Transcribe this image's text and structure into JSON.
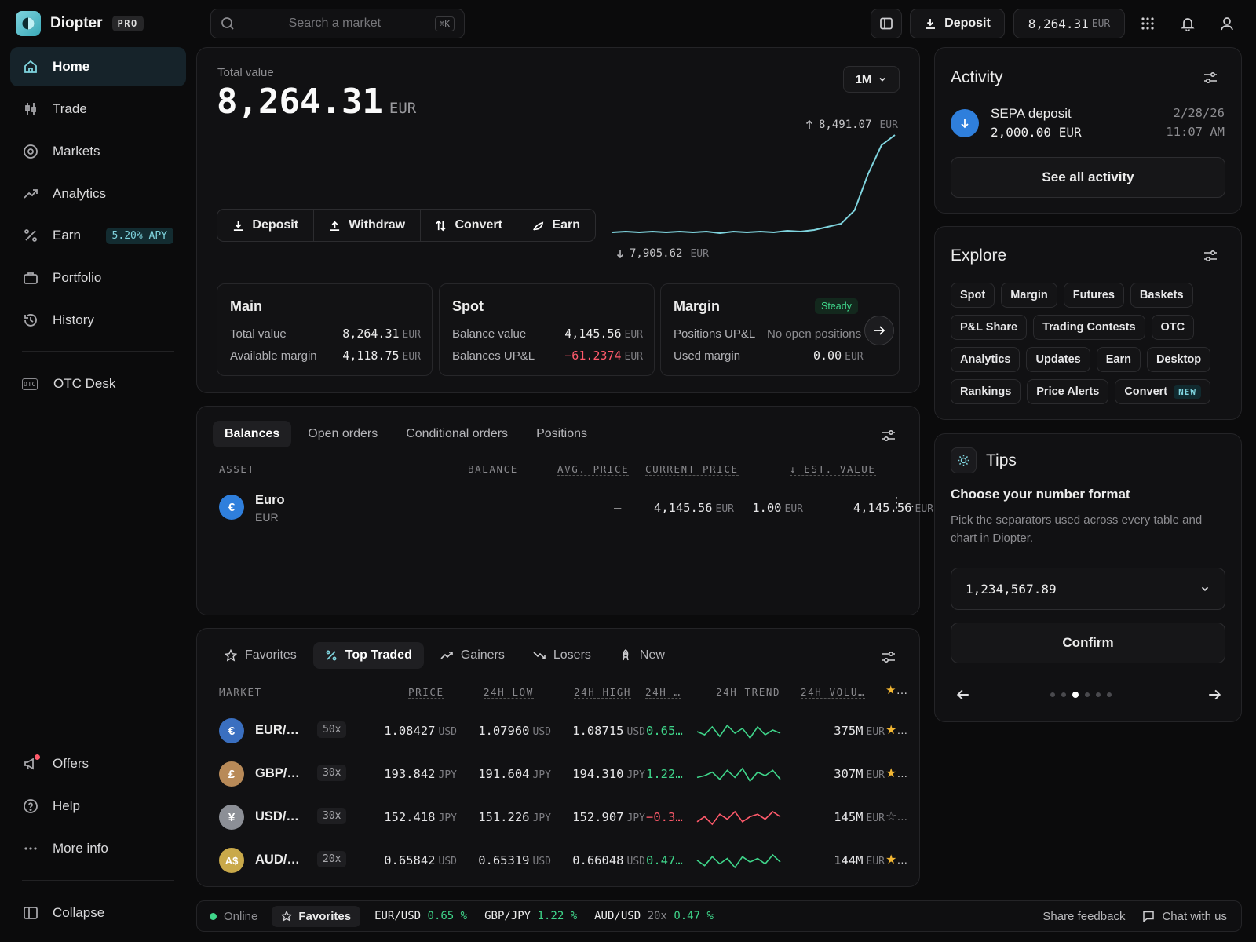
{
  "app": {
    "name": "Diopter",
    "badge": "PRO"
  },
  "sidebar": {
    "items": [
      {
        "label": "Home"
      },
      {
        "label": "Trade"
      },
      {
        "label": "Markets"
      },
      {
        "label": "Analytics"
      },
      {
        "label": "Earn",
        "badge": "5.20% APY"
      },
      {
        "label": "Portfolio"
      },
      {
        "label": "History"
      }
    ],
    "otc": {
      "label": "OTC Desk",
      "icon_text": "OTC"
    },
    "bottom": [
      {
        "label": "Offers"
      },
      {
        "label": "Help"
      },
      {
        "label": "More info"
      }
    ],
    "collapse": "Collapse"
  },
  "topbar": {
    "search_placeholder": "Search a market",
    "search_shortcut": "⌘K",
    "deposit": "Deposit",
    "balance": "8,264.31",
    "balance_currency": "EUR"
  },
  "overview": {
    "label": "Total value",
    "value": "8,264.31",
    "currency": "EUR",
    "range": "1M",
    "chart_high": "8,491.07",
    "chart_low": "7,905.62",
    "chart_currency": "EUR",
    "actions": [
      "Deposit",
      "Withdraw",
      "Convert",
      "Earn"
    ],
    "accounts": [
      {
        "title": "Main",
        "rows": [
          {
            "k": "Total value",
            "v": "8,264.31",
            "c": "EUR"
          },
          {
            "k": "Available margin",
            "v": "4,118.75",
            "c": "EUR"
          }
        ]
      },
      {
        "title": "Spot",
        "rows": [
          {
            "k": "Balance value",
            "v": "4,145.56",
            "c": "EUR"
          },
          {
            "k": "Balances UP&L",
            "v": "−61.2374",
            "c": "EUR"
          }
        ]
      },
      {
        "title": "Margin",
        "badge": "Steady",
        "rows": [
          {
            "k": "Positions UP&L",
            "v": "No open positions",
            "c": ""
          },
          {
            "k": "Used margin",
            "v": "0.00",
            "c": "EUR"
          }
        ]
      }
    ]
  },
  "balances": {
    "tabs": [
      "Balances",
      "Open orders",
      "Conditional orders",
      "Positions"
    ],
    "headers": [
      "ASSET",
      "BALANCE",
      "AVG. PRICE",
      "CURRENT PRICE",
      "EST. VALUE"
    ],
    "rows": [
      {
        "symbol": "€",
        "name": "Euro",
        "code": "EUR",
        "balance": "4,145.56",
        "balance_c": "EUR",
        "avg": "–",
        "price": "1.00",
        "price_c": "EUR",
        "value": "4,145.56",
        "value_c": "EUR"
      }
    ]
  },
  "markets": {
    "tabs": [
      "Favorites",
      "Top Traded",
      "Gainers",
      "Losers",
      "New"
    ],
    "headers": [
      "MARKET",
      "PRICE",
      "24H LOW",
      "24H HIGH",
      "24H …",
      "24H TREND",
      "24H VOLU…"
    ],
    "rows": [
      {
        "symbol": "€",
        "pair": "EUR/…",
        "lev": "50x",
        "price": "1.08427",
        "price_c": "USD",
        "low": "1.07960",
        "low_c": "USD",
        "high": "1.08715",
        "high_c": "USD",
        "chg": "0.65…",
        "vol": "375M",
        "vol_c": "EUR",
        "fav": true,
        "up": true,
        "trend": [
          6,
          4,
          9,
          3,
          10,
          5,
          8,
          2,
          9,
          4,
          7,
          5
        ]
      },
      {
        "symbol": "£",
        "pair": "GBP/…",
        "lev": "30x",
        "price": "193.842",
        "price_c": "JPY",
        "low": "191.604",
        "low_c": "JPY",
        "high": "194.310",
        "high_c": "JPY",
        "chg": "1.22…",
        "vol": "307M",
        "vol_c": "EUR",
        "fav": true,
        "up": true,
        "trend": [
          5,
          6,
          8,
          4,
          9,
          5,
          10,
          3,
          8,
          6,
          9,
          4
        ]
      },
      {
        "symbol": "¥",
        "pair": "USD/…",
        "lev": "30x",
        "price": "152.418",
        "price_c": "JPY",
        "low": "151.226",
        "low_c": "JPY",
        "high": "152.907",
        "high_c": "JPY",
        "chg": "−0.3…",
        "vol": "145M",
        "vol_c": "EUR",
        "fav": false,
        "up": false,
        "trend": [
          4,
          6,
          3,
          7,
          5,
          8,
          4,
          6,
          7,
          5,
          8,
          6
        ]
      },
      {
        "symbol": "A$",
        "pair": "AUD/…",
        "lev": "20x",
        "price": "0.65842",
        "price_c": "USD",
        "low": "0.65319",
        "low_c": "USD",
        "high": "0.66048",
        "high_c": "USD",
        "chg": "0.47…",
        "vol": "144M",
        "vol_c": "EUR",
        "fav": true,
        "up": true,
        "trend": [
          7,
          4,
          9,
          5,
          8,
          3,
          9,
          6,
          8,
          5,
          10,
          6
        ]
      }
    ]
  },
  "activity": {
    "title": "Activity",
    "item": {
      "title": "SEPA deposit",
      "amount": "2,000.00 EUR",
      "date": "2/28/26",
      "time": "11:07 AM"
    },
    "see_all": "See all activity"
  },
  "explore": {
    "title": "Explore",
    "chips": [
      "Spot",
      "Margin",
      "Futures",
      "Baskets",
      "P&L Share",
      "Trading Contests",
      "OTC",
      "Analytics",
      "Updates",
      "Earn",
      "Desktop",
      "Rankings",
      "Price Alerts",
      "Convert"
    ],
    "new_tag": "NEW"
  },
  "tips": {
    "title": "Tips",
    "heading": "Choose your number format",
    "body": "Pick the separators used across every table and chart in Diopter.",
    "select_value": "1,234,567.89",
    "confirm": "Confirm"
  },
  "statusbar": {
    "online": "Online",
    "favorites": "Favorites",
    "tickers": [
      {
        "pair": "EUR/USD",
        "chg": "0.65 %"
      },
      {
        "pair": "GBP/JPY",
        "chg": "1.22 %"
      },
      {
        "pair": "AUD/USD",
        "lev": "20x",
        "chg": "0.47 %"
      }
    ],
    "feedback": "Share feedback",
    "chat": "Chat with us"
  },
  "colors": {
    "accent": "#7fd4de",
    "positive": "#3fd58a",
    "negative": "#ff5a6b",
    "favorite": "#f2b633"
  },
  "balance_chart_values": [
    296,
    295,
    296,
    295,
    296,
    295,
    296,
    295,
    297,
    295,
    296,
    295,
    296,
    294,
    295,
    293,
    289,
    285,
    268,
    222,
    185,
    172
  ]
}
